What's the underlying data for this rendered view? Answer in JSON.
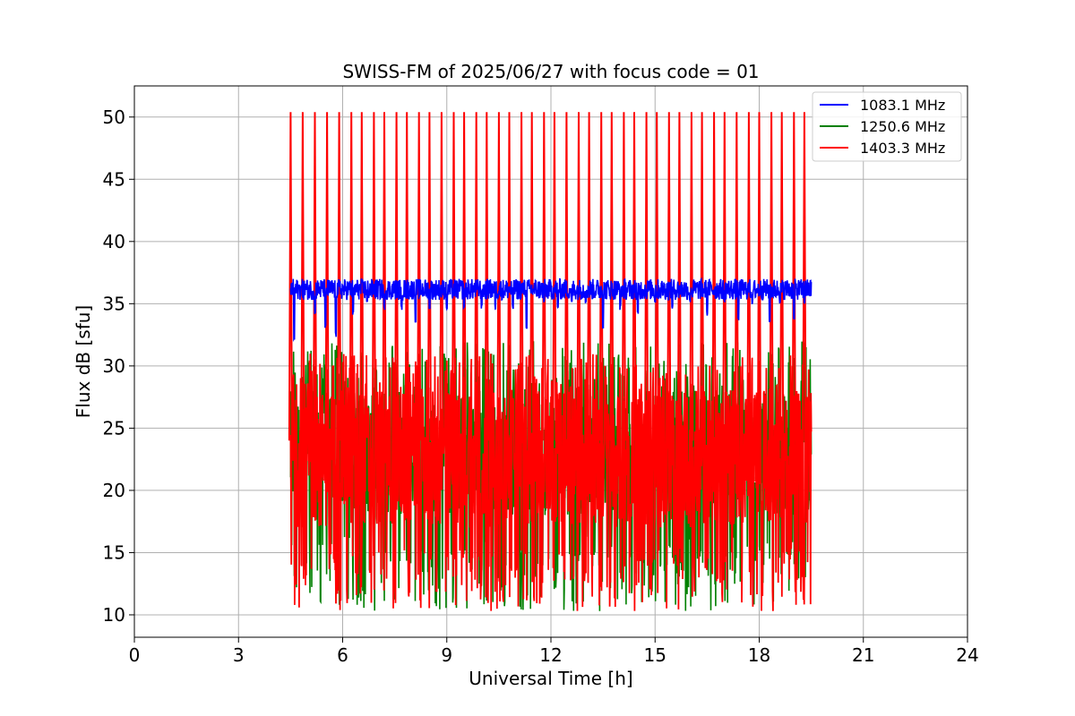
{
  "chart_data": {
    "type": "line",
    "title": "SWISS-FM of 2025/06/27 with focus code = 01",
    "xlabel": "Universal Time [h]",
    "ylabel": "Flux dB [sfu]",
    "xlim": [
      0,
      24
    ],
    "ylim": [
      8.2,
      52.5
    ],
    "xticks": [
      0,
      3,
      6,
      9,
      12,
      15,
      18,
      21,
      24
    ],
    "yticks": [
      10,
      15,
      20,
      25,
      30,
      35,
      40,
      45,
      50
    ],
    "grid": true,
    "legend_position": "top-right",
    "series": [
      {
        "name": "1083.1 MHz",
        "color": "#0000ff",
        "time_range": [
          4.5,
          19.5
        ],
        "baseline": 36.0,
        "noise_range": [
          35.0,
          37.2
        ],
        "dips": [
          [
            4.6,
            32.0
          ],
          [
            5.2,
            34.0
          ],
          [
            5.5,
            33.0
          ],
          [
            5.8,
            32.3
          ],
          [
            6.3,
            34.0
          ],
          [
            6.7,
            35.0
          ],
          [
            7.2,
            34.5
          ],
          [
            7.7,
            34.5
          ],
          [
            8.1,
            33.5
          ],
          [
            8.5,
            34.5
          ],
          [
            9.0,
            34.5
          ],
          [
            9.5,
            34.5
          ],
          [
            10.0,
            34.5
          ],
          [
            10.4,
            34.5
          ],
          [
            10.9,
            34.5
          ],
          [
            11.3,
            33.0
          ],
          [
            11.8,
            35.0
          ],
          [
            12.2,
            34.5
          ],
          [
            12.6,
            35.0
          ],
          [
            13.0,
            35.0
          ],
          [
            13.5,
            33.0
          ],
          [
            14.0,
            34.5
          ],
          [
            14.5,
            34.0
          ],
          [
            15.0,
            35.0
          ],
          [
            15.5,
            34.5
          ],
          [
            16.0,
            35.0
          ],
          [
            16.5,
            34.0
          ],
          [
            17.0,
            35.0
          ],
          [
            17.4,
            33.5
          ],
          [
            17.8,
            35.0
          ],
          [
            18.3,
            33.5
          ],
          [
            18.6,
            35.0
          ],
          [
            19.0,
            33.5
          ],
          [
            19.3,
            35.0
          ]
        ]
      },
      {
        "name": "1250.6 MHz",
        "color": "#008000",
        "time_range": [
          4.5,
          19.5
        ],
        "value_range": [
          10.3,
          32.0
        ]
      },
      {
        "name": "1403.3 MHz",
        "color": "#ff0000",
        "time_range": [
          4.5,
          19.5
        ],
        "value_range": [
          10.3,
          31.0
        ],
        "spike_peak": 50.4,
        "spike_times": [
          4.5,
          4.85,
          5.2,
          5.55,
          5.9,
          6.25,
          6.55,
          6.9,
          7.2,
          7.55,
          7.85,
          8.2,
          8.5,
          8.85,
          9.2,
          9.5,
          9.85,
          10.15,
          10.5,
          10.8,
          11.15,
          11.45,
          11.8,
          12.1,
          12.45,
          12.8,
          13.1,
          13.45,
          13.75,
          14.1,
          14.4,
          14.75,
          15.05,
          15.4,
          15.7,
          16.05,
          16.35,
          16.7,
          17.0,
          17.35,
          17.7,
          18.0,
          18.35,
          18.65,
          19.0,
          19.3
        ]
      }
    ]
  }
}
